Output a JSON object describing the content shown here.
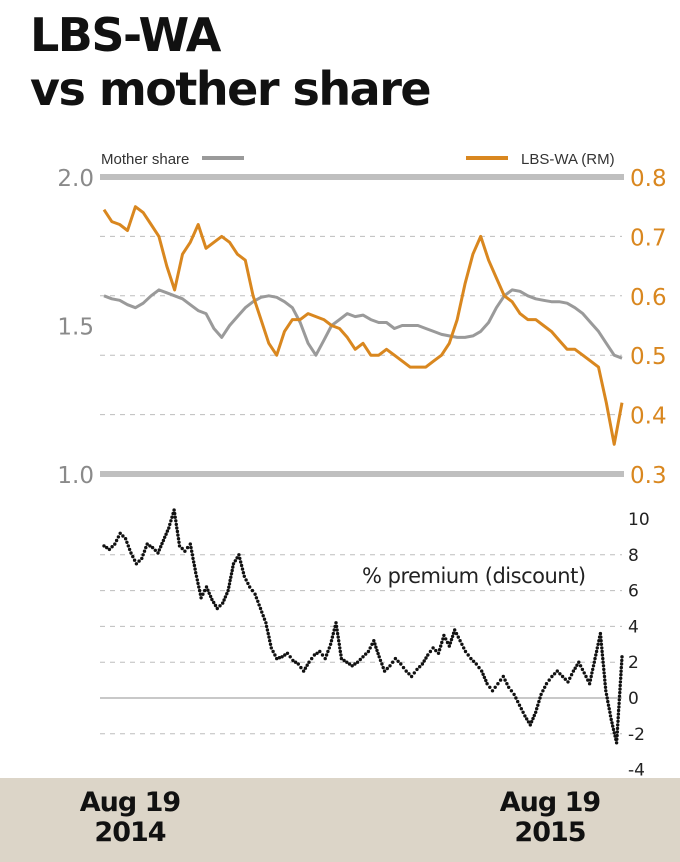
{
  "title": {
    "line1": "LBS-WA",
    "line2": "vs mother share"
  },
  "colors": {
    "mother": "#9a9a9a",
    "warrant": "#d9871f",
    "premium": "#111111",
    "band": "#bfbfbf",
    "footer": "#dcd5c8"
  },
  "chart_data": [
    {
      "type": "line",
      "title": "",
      "legend_placement": "top",
      "x_labels": [
        {
          "month": "Aug 19",
          "year": "2014"
        },
        {
          "month": "Aug 19",
          "year": "2015"
        }
      ],
      "left_axis": {
        "ylim": [
          1.0,
          2.0
        ],
        "ticks": [
          "2.0",
          "1.5",
          "1.0"
        ]
      },
      "right_axis": {
        "ylim": [
          0.3,
          0.8
        ],
        "ticks": [
          "0.8",
          "0.7",
          "0.6",
          "0.5",
          "0.4",
          "0.3"
        ]
      },
      "series": [
        {
          "name": "Mother share",
          "axis": "left",
          "values": [
            1.6,
            1.59,
            1.585,
            1.57,
            1.56,
            1.575,
            1.6,
            1.62,
            1.61,
            1.6,
            1.59,
            1.57,
            1.55,
            1.54,
            1.49,
            1.46,
            1.5,
            1.53,
            1.56,
            1.58,
            1.595,
            1.6,
            1.595,
            1.58,
            1.56,
            1.51,
            1.44,
            1.4,
            1.45,
            1.5,
            1.52,
            1.54,
            1.53,
            1.535,
            1.52,
            1.51,
            1.51,
            1.49,
            1.5,
            1.5,
            1.5,
            1.49,
            1.48,
            1.47,
            1.465,
            1.46,
            1.46,
            1.465,
            1.48,
            1.51,
            1.56,
            1.6,
            1.62,
            1.615,
            1.6,
            1.59,
            1.585,
            1.58,
            1.58,
            1.575,
            1.56,
            1.54,
            1.51,
            1.48,
            1.44,
            1.4,
            1.39
          ]
        },
        {
          "name": "LBS-WA (RM)",
          "axis": "right",
          "values": [
            0.745,
            0.725,
            0.72,
            0.71,
            0.75,
            0.74,
            0.72,
            0.7,
            0.65,
            0.61,
            0.67,
            0.69,
            0.72,
            0.68,
            0.69,
            0.7,
            0.69,
            0.67,
            0.66,
            0.6,
            0.56,
            0.52,
            0.5,
            0.54,
            0.56,
            0.56,
            0.57,
            0.565,
            0.56,
            0.55,
            0.545,
            0.53,
            0.51,
            0.52,
            0.5,
            0.5,
            0.51,
            0.5,
            0.49,
            0.48,
            0.48,
            0.48,
            0.49,
            0.5,
            0.52,
            0.56,
            0.62,
            0.67,
            0.7,
            0.66,
            0.63,
            0.6,
            0.59,
            0.57,
            0.56,
            0.56,
            0.55,
            0.54,
            0.525,
            0.51,
            0.51,
            0.5,
            0.49,
            0.48,
            0.42,
            0.35,
            0.42
          ]
        }
      ]
    },
    {
      "type": "scatter",
      "title": "% premium (discount)",
      "ylim": [
        -4,
        10
      ],
      "ticks": [
        "10",
        "8",
        "6",
        "4",
        "2",
        "0",
        "-2",
        "-4"
      ],
      "series": [
        {
          "values": [
            8.5,
            8.3,
            8.6,
            9.2,
            8.9,
            8.1,
            7.5,
            7.8,
            8.6,
            8.4,
            8.1,
            8.8,
            9.5,
            10.5,
            8.5,
            8.2,
            8.6,
            7.0,
            5.6,
            6.2,
            5.5,
            5.0,
            5.3,
            6.0,
            7.5,
            8.0,
            6.8,
            6.2,
            5.8,
            5.0,
            4.2,
            2.8,
            2.2,
            2.3,
            2.5,
            2.1,
            1.9,
            1.5,
            2.0,
            2.4,
            2.6,
            2.2,
            3.0,
            4.2,
            2.2,
            2.0,
            1.8,
            2.0,
            2.3,
            2.6,
            3.2,
            2.3,
            1.5,
            1.8,
            2.2,
            1.9,
            1.5,
            1.2,
            1.6,
            1.9,
            2.4,
            2.8,
            2.5,
            3.5,
            2.9,
            3.8,
            3.2,
            2.6,
            2.2,
            1.9,
            1.5,
            0.8,
            0.4,
            0.8,
            1.2,
            0.6,
            0.2,
            -0.4,
            -1.0,
            -1.5,
            -0.8,
            0.2,
            0.8,
            1.2,
            1.5,
            1.2,
            0.9,
            1.5,
            2.0,
            1.4,
            0.8,
            2.2,
            3.6,
            0.4,
            -1.2,
            -2.5,
            2.3
          ]
        }
      ]
    }
  ]
}
